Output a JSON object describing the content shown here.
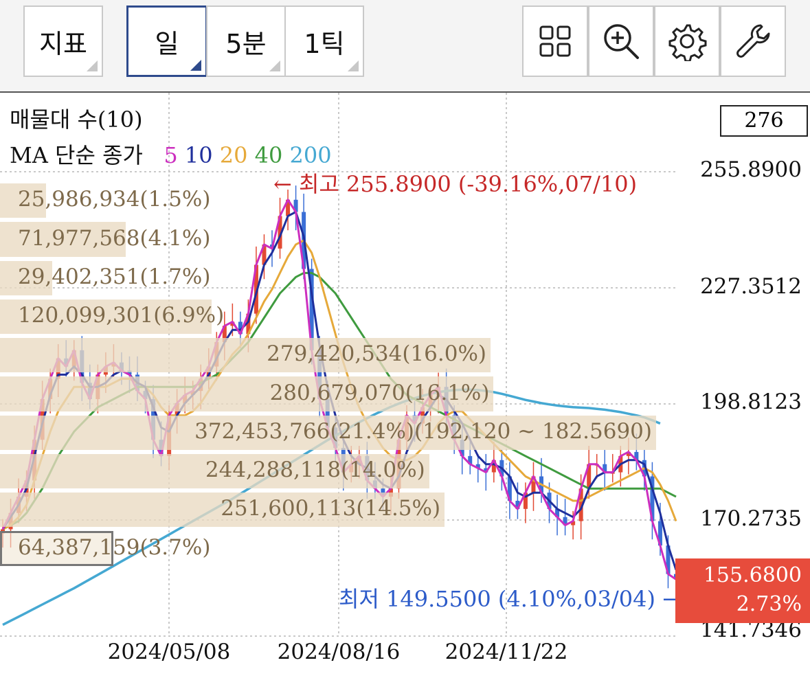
{
  "toolbar": {
    "indicator_label": "지표",
    "period_buttons": [
      {
        "label": "일",
        "active": true
      },
      {
        "label": "5분",
        "active": false
      },
      {
        "label": "1틱",
        "active": false
      }
    ],
    "icons": [
      "grid-icon",
      "zoom-in-icon",
      "settings-icon",
      "wrench-icon"
    ]
  },
  "chart_data": {
    "type": "line",
    "indicator_title": "매물대 수(10)",
    "ma_legend": {
      "label": "MA 단순 종가",
      "periods": [
        {
          "name": "5",
          "color": "#cc2fbf"
        },
        {
          "name": "10",
          "color": "#1f2f9c"
        },
        {
          "name": "20",
          "color": "#e6a93a"
        },
        {
          "name": "40",
          "color": "#3f9b3f"
        },
        {
          "name": "200",
          "color": "#45a8d2"
        }
      ]
    },
    "top_box_value": "276",
    "y_ticks": [
      "255.8900",
      "227.3512",
      "198.8123",
      "170.2735",
      "141.7346"
    ],
    "ylim": [
      141.7346,
      255.89
    ],
    "x_ticks": [
      "2024/05/08",
      "2024/08/16",
      "2024/11/22"
    ],
    "high_label": "← 최고 255.8900 (-39.16%,07/10)",
    "low_label": "최저 149.5500 (4.10%,03/04) →",
    "current_price": "155.6800",
    "current_change": "2.73%",
    "current_color": "#e74c3c",
    "volume_profile": [
      {
        "label": "25,986,934(1.5%)",
        "pct": 1.5,
        "price_low": 244.5,
        "price_high": 253.0
      },
      {
        "label": "71,977,568(4.1%)",
        "pct": 4.1,
        "price_low": 235.0,
        "price_high": 243.5
      },
      {
        "label": "29,402,351(1.7%)",
        "pct": 1.7,
        "price_low": 225.5,
        "price_high": 234.0
      },
      {
        "label": "120,099,301(6.9%)",
        "pct": 6.9,
        "price_low": 216.0,
        "price_high": 224.5
      },
      {
        "label": "279,420,534(16.0%)",
        "pct": 16.0,
        "price_low": 206.5,
        "price_high": 215.0
      },
      {
        "label": "280,679,070(16.1%)",
        "pct": 16.1,
        "price_low": 197.0,
        "price_high": 205.5
      },
      {
        "label": "372,453,766(21.4%)(192,120 ~ 182.5690)",
        "pct": 21.4,
        "price_low": 187.5,
        "price_high": 196.0
      },
      {
        "label": "244,288,118(14.0%)",
        "pct": 14.0,
        "price_low": 178.0,
        "price_high": 186.5
      },
      {
        "label": "251,600,113(14.5%)",
        "pct": 14.5,
        "price_low": 168.5,
        "price_high": 177.0
      },
      {
        "label": "64,387,159(3.7%)",
        "pct": 3.7,
        "price_low": 159.0,
        "price_high": 167.5,
        "highlight": true
      }
    ],
    "series": [
      {
        "name": "5",
        "color": "#cc2fbf",
        "values": [
          168,
          172,
          176,
          180,
          190,
          200,
          205,
          210,
          208,
          212,
          204,
          200,
          206,
          208,
          209,
          207,
          206,
          202,
          200,
          190,
          186,
          196,
          199,
          201,
          202,
          205,
          208,
          214,
          218,
          219,
          216,
          221,
          233,
          238,
          237,
          245,
          249,
          246,
          232,
          212,
          200,
          193,
          188,
          182,
          184,
          186,
          180,
          178,
          176,
          178,
          190,
          196,
          194,
          198,
          201,
          203,
          196,
          190,
          186,
          184,
          183,
          182,
          185,
          181,
          175,
          173,
          177,
          181,
          177,
          173,
          171,
          169,
          170,
          178,
          184,
          184,
          182,
          182,
          186,
          187,
          185,
          181,
          170,
          164,
          157,
          155.68
        ]
      },
      {
        "name": "10",
        "color": "#1f2f9c",
        "values": [
          168,
          171,
          174,
          178,
          186,
          194,
          201,
          206,
          206,
          208,
          206,
          203,
          203,
          204,
          206,
          207,
          206,
          204,
          203,
          198,
          193,
          192,
          196,
          199,
          201,
          203,
          206,
          210,
          214,
          217,
          217,
          219,
          226,
          233,
          236,
          240,
          245,
          246,
          240,
          226,
          213,
          203,
          196,
          190,
          186,
          184,
          183,
          181,
          179,
          178,
          181,
          187,
          191,
          195,
          198,
          201,
          200,
          197,
          194,
          190,
          186,
          184,
          184,
          183,
          181,
          177,
          176,
          177,
          177,
          175,
          173,
          172,
          171,
          173,
          178,
          181,
          182,
          182,
          184,
          185,
          185,
          184,
          178,
          172,
          164,
          158
        ]
      },
      {
        "name": "20",
        "color": "#e6a93a",
        "values": [
          168,
          169,
          171,
          174,
          180,
          186,
          192,
          197,
          200,
          203,
          203,
          203,
          203,
          203,
          204,
          205,
          205,
          204,
          203,
          201,
          198,
          196,
          196,
          196,
          197,
          199,
          202,
          205,
          208,
          211,
          213,
          216,
          220,
          224,
          227,
          231,
          235,
          238,
          239,
          236,
          230,
          223,
          216,
          209,
          203,
          198,
          194,
          191,
          188,
          186,
          185,
          185,
          186,
          188,
          191,
          194,
          196,
          197,
          197,
          195,
          193,
          191,
          189,
          187,
          185,
          183,
          181,
          180,
          179,
          178,
          177,
          176,
          175,
          175,
          176,
          177,
          178,
          179,
          180,
          181,
          182,
          183,
          182,
          179,
          175,
          170
        ]
      },
      {
        "name": "40",
        "color": "#3f9b3f",
        "values": [
          168,
          169,
          170,
          172,
          175,
          178,
          182,
          186,
          189,
          192,
          194,
          196,
          198,
          199,
          200,
          201,
          202,
          203,
          203,
          203,
          203,
          203,
          203,
          203,
          203,
          204,
          205,
          206,
          208,
          210,
          212,
          214,
          217,
          220,
          223,
          226,
          228,
          230,
          231,
          231,
          230,
          228,
          226,
          223,
          220,
          217,
          214,
          211,
          208,
          205,
          203,
          201,
          200,
          199,
          198,
          197,
          196,
          195,
          194,
          193,
          192,
          191,
          190,
          189,
          188,
          187,
          186,
          185,
          184,
          183,
          182,
          181,
          180,
          179,
          178,
          178,
          178,
          178,
          178,
          178,
          178,
          178,
          178,
          178,
          177,
          176
        ]
      },
      {
        "name": "200",
        "color": "#45a8d2",
        "values": [
          144.5,
          145.5,
          146.5,
          147.5,
          148.5,
          149.5,
          150.5,
          151.5,
          152.5,
          153.5,
          154.6,
          155.7,
          156.8,
          157.9,
          159.0,
          160.1,
          161.2,
          162.3,
          163.4,
          164.5,
          165.6,
          166.7,
          167.8,
          168.9,
          170.0,
          171.1,
          172.2,
          173.3,
          174.4,
          175.5,
          176.7,
          177.9,
          179.1,
          180.3,
          181.5,
          182.7,
          183.9,
          185.1,
          186.3,
          187.5,
          188.7,
          189.9,
          191.0,
          192.1,
          193.2,
          194.3,
          195.3,
          196.3,
          197.2,
          198.1,
          198.9,
          199.6,
          200.2,
          200.8,
          201.3,
          201.7,
          202.0,
          202.2,
          202.3,
          202.3,
          202.2,
          202.0,
          201.7,
          201.3,
          200.8,
          200.3,
          199.8,
          199.4,
          199.0,
          198.7,
          198.4,
          198.2,
          198.0,
          197.9,
          197.8,
          197.6,
          197.4,
          197.1,
          196.8,
          196.4,
          196.0,
          195.5,
          194.8,
          194.0
        ]
      }
    ]
  }
}
